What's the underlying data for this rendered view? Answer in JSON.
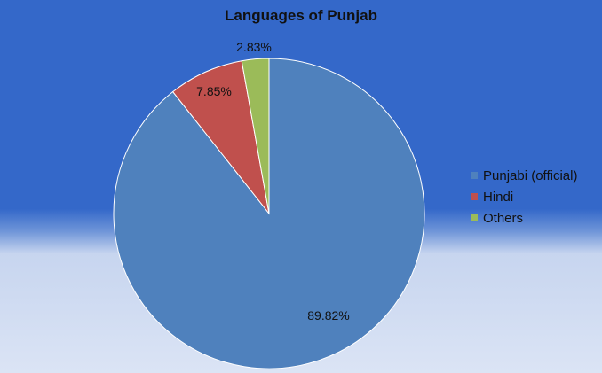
{
  "chart_data": {
    "type": "pie",
    "title": "Languages of Punjab",
    "slices": [
      {
        "label": "Punjabi (official)",
        "value": 89.82,
        "value_label": "89.82%",
        "color": "#4f81bd"
      },
      {
        "label": "Hindi",
        "value": 7.85,
        "value_label": "7.85%",
        "color": "#c0504d"
      },
      {
        "label": "Others",
        "value": 2.83,
        "value_label": "2.83%",
        "color": "#9bbb59"
      }
    ],
    "legend_position": "right"
  }
}
